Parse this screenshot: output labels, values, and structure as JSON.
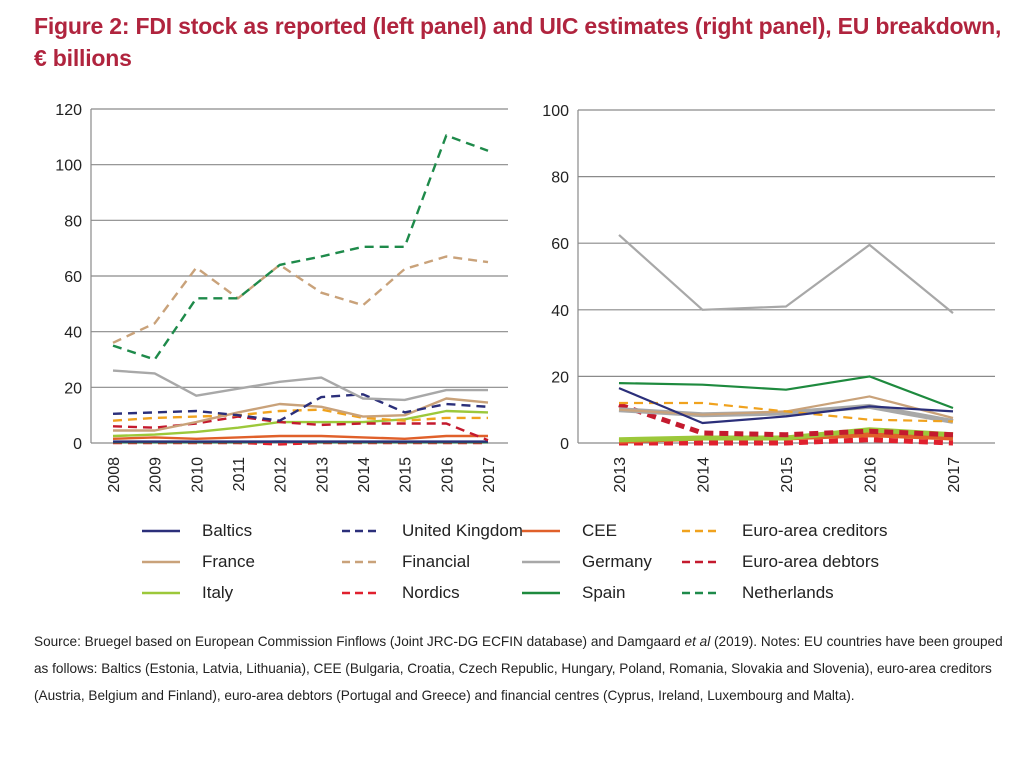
{
  "title": "Figure 2: FDI stock as reported (left panel) and UIC estimates (right panel), EU breakdown, € billions",
  "note": {
    "part1": "Source: Bruegel based on European Commission Finflows (Joint JRC-DG ECFIN database) and Damgaard ",
    "italic": "et al",
    "part2": " (2019). Notes: EU countries have been grouped as follows: Baltics (Estonia, Latvia, Lithuania), CEE (Bulgaria, Croatia, Czech Republic, Hungary, Poland, Romania, Slovakia and Slovenia), euro-area creditors (Austria, Belgium and Finland), euro-area debtors (Portugal and Greece) and financial centres (Cyprus, Ireland, Luxembourg and Malta)."
  },
  "legend": [
    {
      "name": "Baltics",
      "color": "#2b2f7a",
      "dashed": false
    },
    {
      "name": "United Kingdom",
      "color": "#2b2f7a",
      "dashed": true
    },
    {
      "name": "CEE",
      "color": "#e0602a",
      "dashed": false
    },
    {
      "name": "Euro-area creditors",
      "color": "#f0a21e",
      "dashed": true
    },
    {
      "name": "France",
      "color": "#c9a27a",
      "dashed": false
    },
    {
      "name": "Financial",
      "color": "#c9a27a",
      "dashed": true
    },
    {
      "name": "Germany",
      "color": "#a8a8a8",
      "dashed": false
    },
    {
      "name": "Euro-area debtors",
      "color": "#c41a2e",
      "dashed": true
    },
    {
      "name": "Italy",
      "color": "#9cc83a",
      "dashed": false
    },
    {
      "name": "Nordics",
      "color": "#e0202e",
      "dashed": true
    },
    {
      "name": "Spain",
      "color": "#1e8a3e",
      "dashed": false
    },
    {
      "name": "Netherlands",
      "color": "#1e8a4a",
      "dashed": true
    }
  ],
  "chart_data": [
    {
      "type": "line",
      "title": "FDI stock as reported",
      "xlabel": "",
      "ylabel": "€ billions",
      "x": [
        "2008",
        "2009",
        "2010",
        "2011",
        "2012",
        "2013",
        "2014",
        "2015",
        "2016",
        "2017"
      ],
      "ylim": [
        0,
        120
      ],
      "yticks": [
        0,
        20,
        40,
        60,
        80,
        100,
        120
      ],
      "grid": true,
      "series": [
        {
          "name": "Netherlands",
          "values": [
            35,
            30,
            52,
            52,
            64,
            67,
            70.5,
            70.5,
            110.5,
            105
          ]
        },
        {
          "name": "Financial",
          "values": [
            36,
            43,
            63,
            52,
            64,
            54,
            49.5,
            62.5,
            67,
            65
          ]
        },
        {
          "name": "Germany",
          "values": [
            26,
            25,
            17,
            19.5,
            22,
            23.5,
            16,
            15.5,
            19,
            19
          ]
        },
        {
          "name": "United Kingdom",
          "values": [
            10.5,
            11,
            11.5,
            10,
            8,
            16.5,
            17.5,
            11,
            14,
            13
          ]
        },
        {
          "name": "France",
          "values": [
            4.5,
            4.5,
            7.5,
            11,
            14,
            13,
            9.5,
            10,
            16,
            14.5
          ]
        },
        {
          "name": "Euro-area creditors",
          "values": [
            8,
            9,
            9.5,
            10,
            11.5,
            12,
            9,
            8,
            9,
            9
          ]
        },
        {
          "name": "Euro-area debtors",
          "values": [
            6,
            5.5,
            7,
            9.5,
            7.5,
            6.5,
            7,
            7,
            7,
            1
          ]
        },
        {
          "name": "Italy",
          "values": [
            2.5,
            3,
            4,
            5.5,
            7.5,
            7.5,
            7.5,
            8.5,
            11.5,
            11
          ]
        },
        {
          "name": "CEE",
          "values": [
            1.5,
            2,
            1.5,
            2,
            2.5,
            2.5,
            2,
            1.5,
            2.5,
            2.5
          ]
        },
        {
          "name": "Baltics",
          "values": [
            0.5,
            0.5,
            0.5,
            0.5,
            0.5,
            0.5,
            0.5,
            0.5,
            0.5,
            0.5
          ]
        },
        {
          "name": "Spain",
          "values": [
            0.3,
            0.3,
            0.3,
            0.3,
            0.5,
            0.3,
            0.3,
            0.3,
            0.3,
            0.3
          ]
        },
        {
          "name": "Nordics",
          "values": [
            0,
            0,
            0,
            0,
            -0.5,
            0,
            0,
            0,
            0,
            0
          ]
        }
      ]
    },
    {
      "type": "line",
      "title": "UIC estimates",
      "xlabel": "",
      "ylabel": "€ billions",
      "x": [
        "2013",
        "2014",
        "2015",
        "2016",
        "2017"
      ],
      "ylim": [
        0,
        100
      ],
      "yticks": [
        0,
        20,
        40,
        60,
        80,
        100
      ],
      "grid": true,
      "series": [
        {
          "name": "Germany",
          "values": [
            62.5,
            40,
            41,
            59.5,
            39
          ]
        },
        {
          "name": "Spain",
          "values": [
            18,
            17.5,
            16,
            20,
            10.5
          ]
        },
        {
          "name": "Baltics",
          "values": [
            16.5,
            6,
            8,
            11,
            9.5
          ]
        },
        {
          "name": "Euro-area creditors",
          "values": [
            12,
            12,
            9.5,
            7,
            6.5
          ]
        },
        {
          "name": "France",
          "values": [
            10,
            8.5,
            9.5,
            14,
            7.5
          ]
        },
        {
          "name": "Germany (thick)",
          "values": [
            10,
            8.5,
            9,
            11,
            6.5
          ]
        },
        {
          "name": "Euro-area debtors",
          "values": [
            11.5,
            3,
            2.5,
            3.5,
            2.5
          ]
        },
        {
          "name": "Italy",
          "values": [
            1,
            1.5,
            1.5,
            4,
            2.5
          ]
        },
        {
          "name": "CEE",
          "values": [
            0.5,
            1.5,
            1.5,
            2.5,
            1.5
          ]
        },
        {
          "name": "Nordics",
          "values": [
            0,
            0,
            0,
            1,
            0
          ]
        }
      ]
    }
  ]
}
